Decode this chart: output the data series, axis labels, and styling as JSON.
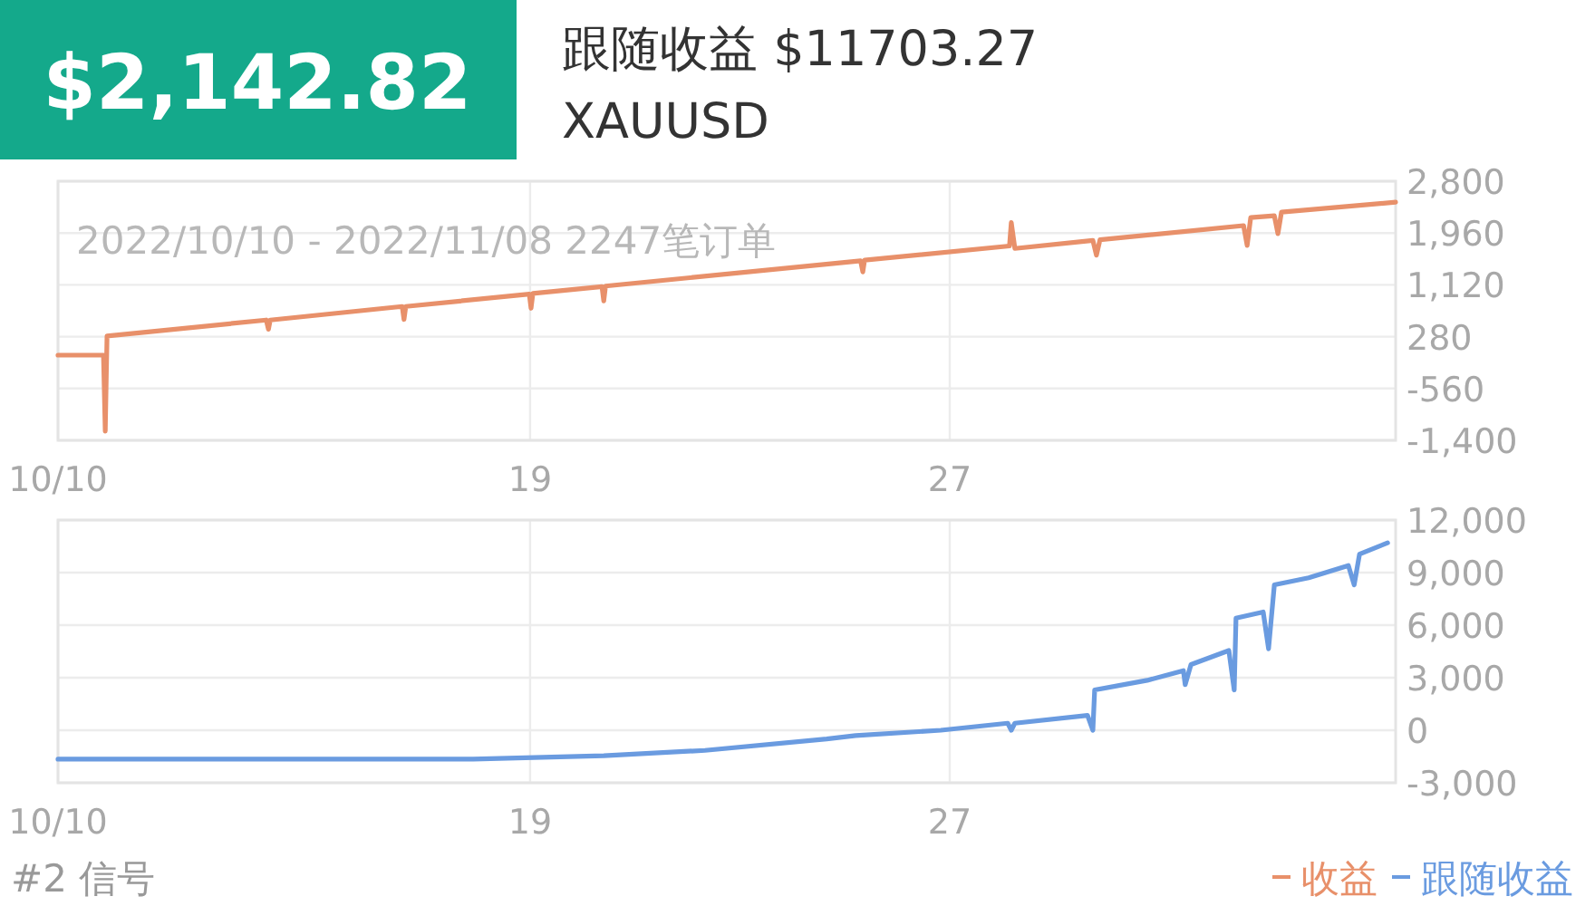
{
  "chart_data": [
    {
      "type": "line",
      "title": "$2,142.82",
      "subtitle": "跟随收益 $11703.27",
      "annotations": [
        "XAUUSD",
        "2022/10/10 - 2022/11/08 2247笔订单"
      ],
      "xlim": [
        "2022-10-10",
        "2022-11-04T12:00"
      ],
      "xticks": [
        {
          "value": "2022-10-10",
          "label": "10/10"
        },
        {
          "value": "2022-10-19",
          "label": "19"
        },
        {
          "value": "2022-10-27",
          "label": "27"
        }
      ],
      "ylim": [
        -1400,
        2800
      ],
      "yticks": [
        {
          "value": 2800,
          "label": "2,800"
        },
        {
          "value": 1960,
          "label": "1,960"
        },
        {
          "value": 1120,
          "label": "1,120"
        },
        280,
        -560,
        {
          "value": -1400,
          "label": "-1,400"
        }
      ],
      "grid": true,
      "legend": "bottom right",
      "marker": "none",
      "line_style": "solid",
      "series": [
        {
          "name": "收益",
          "color": "#e8906a",
          "x": [
            "2022-10-10T00:00",
            "2022-10-10T20:49",
            "2022-10-10T21:37",
            "2022-10-10T22:26",
            "2022-10-13T23:16",
            "2022-10-14T00:17",
            "2022-10-14T01:06",
            "2022-10-16T13:29",
            "2022-10-16T14:18",
            "2022-10-16T15:07",
            "2022-10-18T23:38",
            "2022-10-19T00:26",
            "2022-10-19T01:16",
            "2022-10-20T08:53",
            "2022-10-20T09:42",
            "2022-10-20T10:31",
            "2022-10-25T07:12",
            "2022-10-25T08:13",
            "2022-10-25T09:02",
            "2022-10-28T03:20",
            "2022-10-28T04:09",
            "2022-10-28T05:47",
            "2022-10-29T17:29",
            "2022-10-29T19:07",
            "2022-10-29T20:45",
            "2022-11-01T14:26",
            "2022-11-01T16:04",
            "2022-11-01T17:42",
            "2022-11-02T04:31",
            "2022-11-02T06:09",
            "2022-11-02T07:47",
            "2022-11-04T12:00"
          ],
          "values": [
            -20,
            -20,
            -1250,
            290,
            550,
            400,
            550,
            770,
            560,
            770,
            970,
            740,
            980,
            1090,
            860,
            1100,
            1510,
            1330,
            1520,
            1750,
            2130,
            1710,
            1840,
            1600,
            1850,
            2080,
            1760,
            2210,
            2240,
            1950,
            2300,
            2460
          ]
        }
      ]
    },
    {
      "type": "line",
      "annotations": [
        "#2 信号"
      ],
      "xlim": [
        "2022-10-10",
        "2022-11-04T12:00"
      ],
      "xticks": [
        {
          "value": "2022-10-10",
          "label": "10/10"
        },
        {
          "value": "2022-10-19",
          "label": "19"
        },
        {
          "value": "2022-10-27",
          "label": "27"
        }
      ],
      "ylim": [
        -3000,
        12000
      ],
      "yticks": [
        {
          "value": 12000,
          "label": "12,000"
        },
        {
          "value": 9000,
          "label": "9,000"
        },
        {
          "value": 6000,
          "label": "6,000"
        },
        {
          "value": 3000,
          "label": "3,000"
        },
        0,
        {
          "value": -3000,
          "label": "-3,000"
        }
      ],
      "grid": true,
      "legend": "bottom right",
      "marker": "none",
      "line_style": "solid",
      "series": [
        {
          "name": "跟随收益",
          "color": "#6a9be0",
          "x": [
            "2022-10-10T00:00",
            "2022-10-17T21:55",
            "2022-10-20T09:42",
            "2022-10-22T08:00",
            "2022-10-24T15:42",
            "2022-10-25T04:57",
            "2022-10-26T19:55",
            "2022-10-28T02:31",
            "2022-10-28T04:09",
            "2022-10-28T05:47",
            "2022-10-29T15:02",
            "2022-10-29T17:29",
            "2022-10-29T18:18",
            "2022-10-30T18:22",
            "2022-10-31T10:54",
            "2022-10-31T11:43",
            "2022-10-31T14:22",
            "2022-11-01T07:42",
            "2022-11-01T10:09",
            "2022-11-01T10:58",
            "2022-11-01T23:25",
            "2022-11-02T01:52",
            "2022-11-02T04:31",
            "2022-11-02T20:13",
            "2022-11-03T14:23",
            "2022-11-03T17:02",
            "2022-11-03T19:29",
            "2022-11-04T08:20"
          ],
          "values": [
            -1650,
            -1650,
            -1450,
            -1150,
            -500,
            -300,
            0,
            400,
            0,
            400,
            850,
            0,
            2300,
            2850,
            3400,
            2600,
            3750,
            4550,
            2300,
            6400,
            6750,
            4650,
            8300,
            8700,
            9400,
            8300,
            10050,
            10700
          ]
        }
      ]
    }
  ]
}
